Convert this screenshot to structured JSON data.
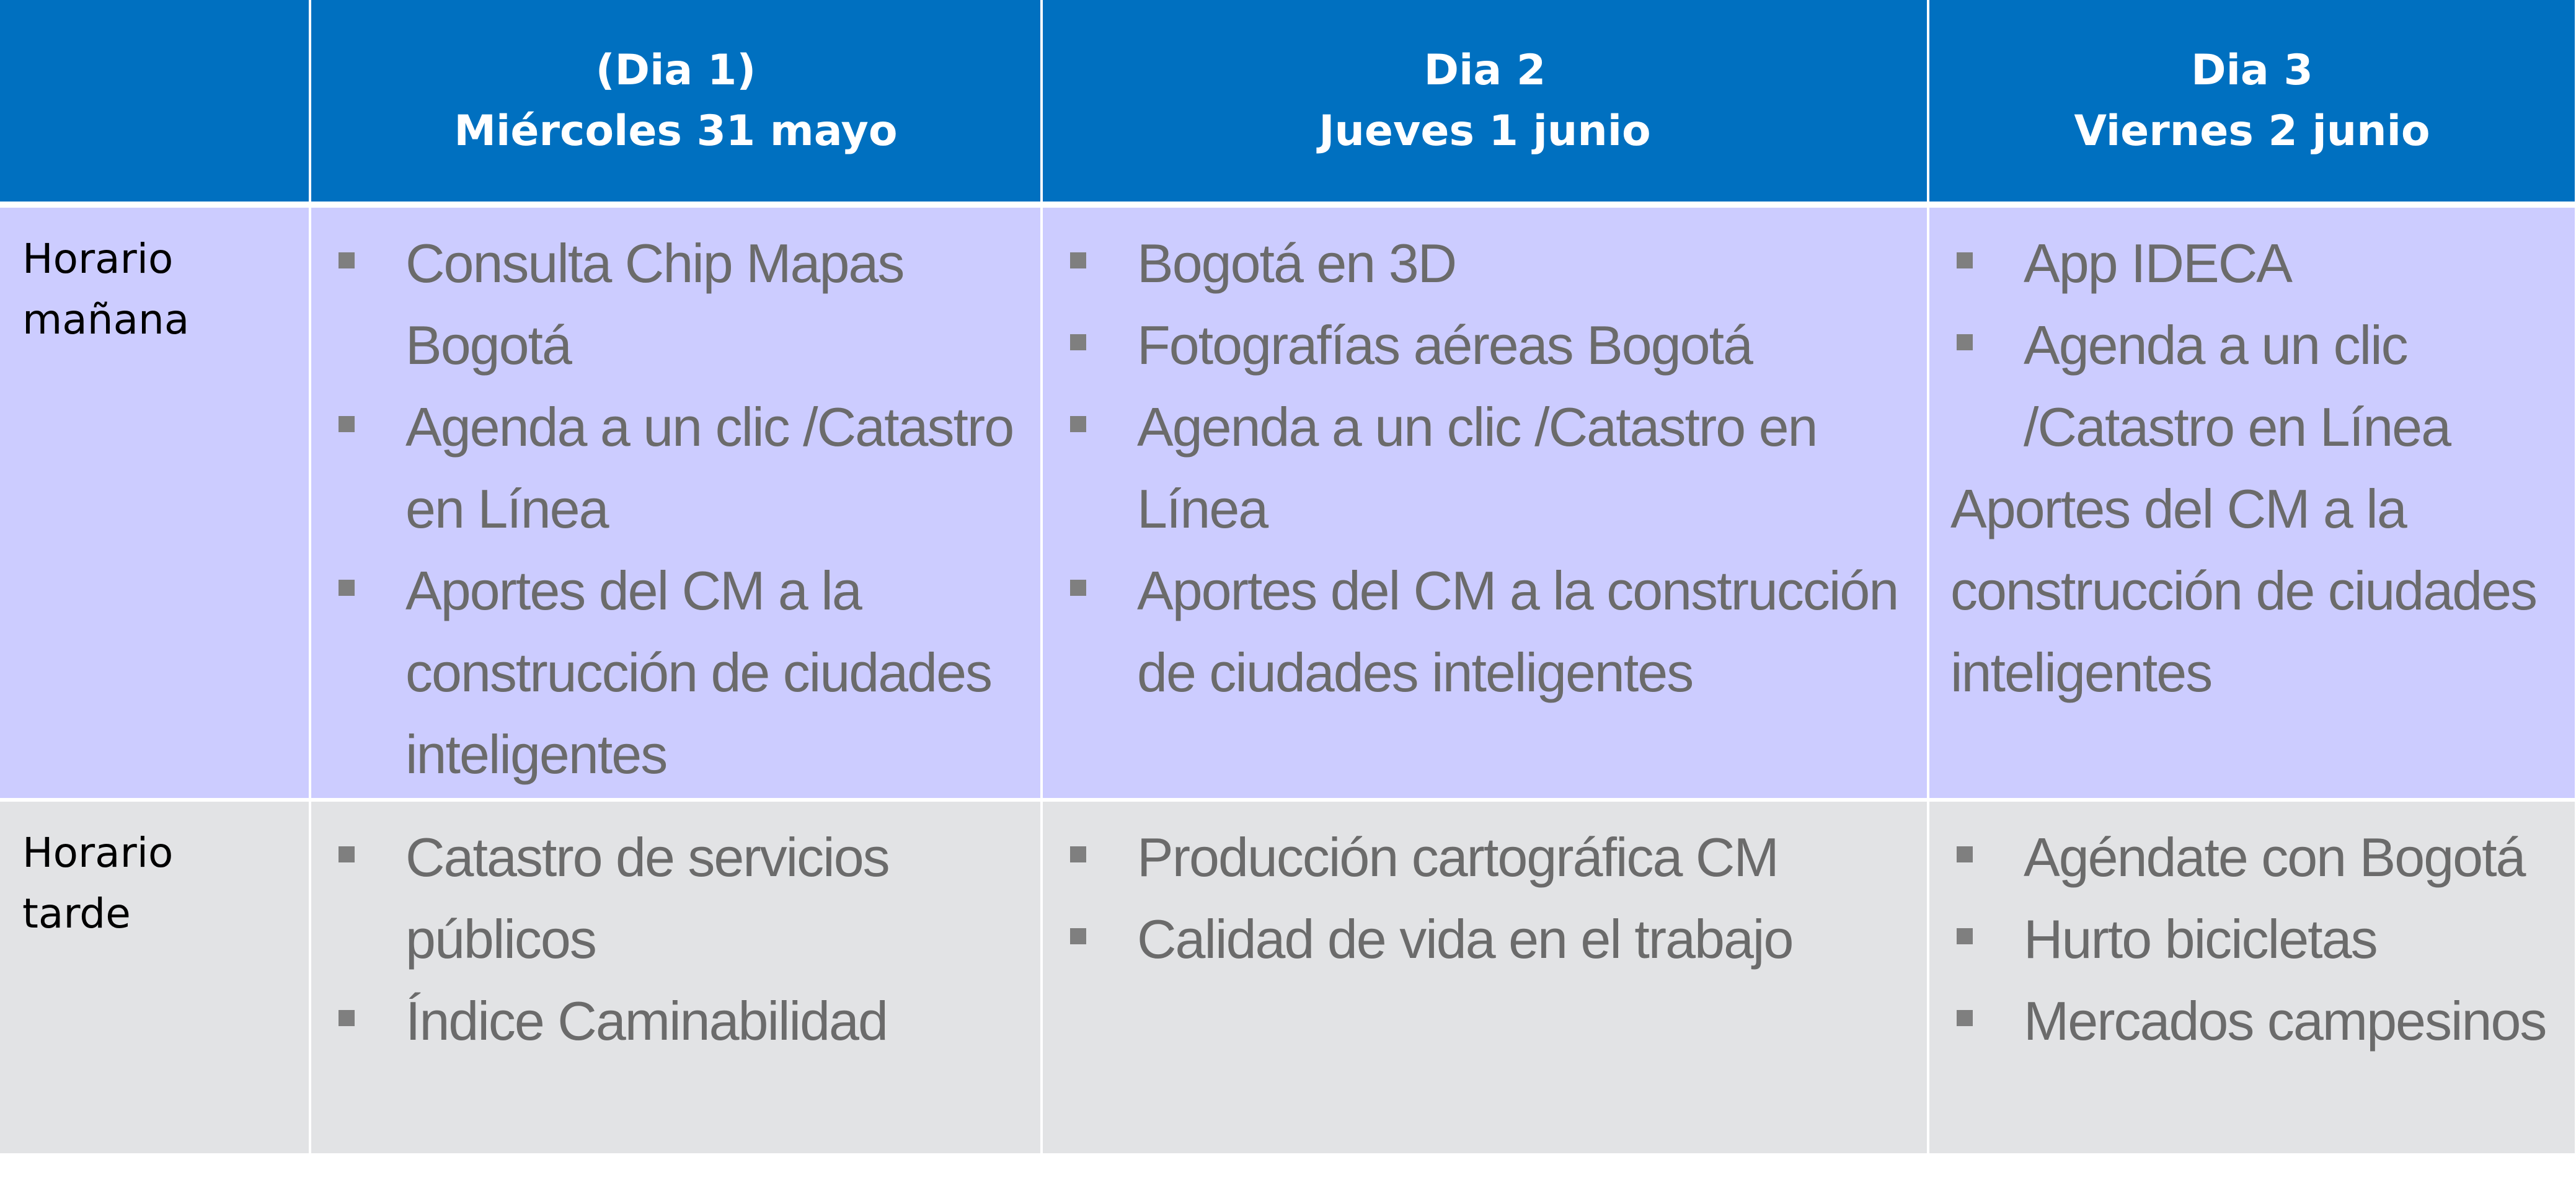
{
  "header": {
    "corner": "",
    "days": [
      {
        "line1": "(Dia 1)",
        "line2": "Miércoles 31 mayo"
      },
      {
        "line1": "Dia 2",
        "line2": "Jueves 1 junio"
      },
      {
        "line1": "Dia 3",
        "line2": "Viernes 2 junio"
      }
    ]
  },
  "rows": {
    "morning": {
      "label_line1": "Horario",
      "label_line2": "mañana",
      "day1": [
        "Consulta Chip Mapas Bogotá",
        "Agenda a un clic /Catastro en Línea",
        "Aportes del CM a la construcción de ciudades inteligentes"
      ],
      "day2": [
        "Bogotá en 3D",
        "Fotografías aéreas Bogotá",
        "Agenda a un clic /Catastro en Línea",
        "Aportes del CM a la construcción de ciudades inteligentes"
      ],
      "day3": [
        "App IDECA",
        "Agenda a un clic /Catastro en Línea"
      ],
      "day3_plain": "Aportes del CM a la construcción de ciudades inteligentes"
    },
    "afternoon": {
      "label_line1": "Horario",
      "label_line2": "tarde",
      "day1": [
        "Catastro de servicios públicos",
        "Índice Caminabilidad"
      ],
      "day2": [
        "Producción cartográfica CM",
        "Calidad de vida en el trabajo"
      ],
      "day3": [
        "Agéndate con Bogotá",
        "Hurto bicicletas",
        "Mercados campesinos"
      ]
    }
  }
}
